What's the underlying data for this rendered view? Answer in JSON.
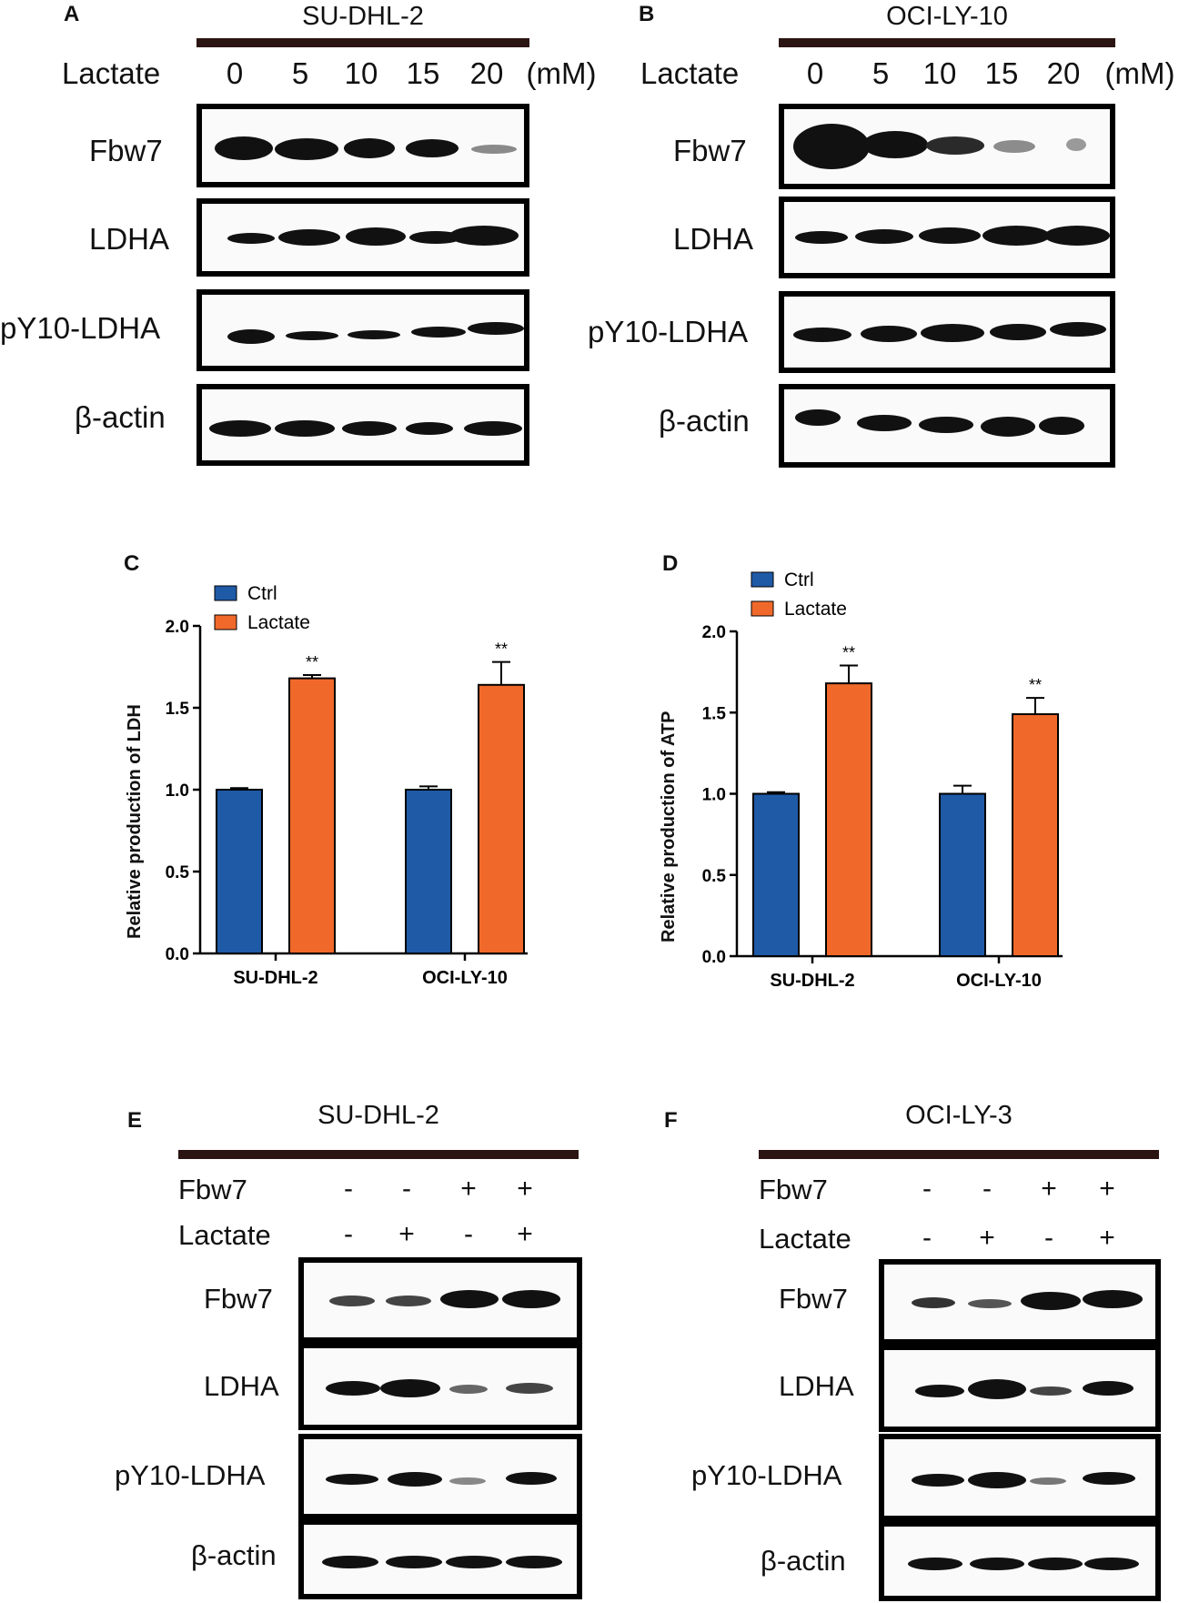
{
  "panels": {
    "A": {
      "letter": "A",
      "cell": "SU-DHL-2",
      "treat": "Lactate",
      "unit": "(mM)",
      "doses": [
        "0",
        "5",
        "10",
        "15",
        "20"
      ],
      "rows": [
        "Fbw7",
        "LDHA",
        "pY10-LDHA",
        "β-actin"
      ]
    },
    "B": {
      "letter": "B",
      "cell": "OCI-LY-10",
      "treat": "Lactate",
      "unit": "(mM)",
      "doses": [
        "0",
        "5",
        "10",
        "15",
        "20"
      ],
      "rows": [
        "Fbw7",
        "LDHA",
        "pY10-LDHA",
        "β-actin"
      ]
    },
    "E": {
      "letter": "E",
      "cell": "SU-DHL-2",
      "cond": [
        {
          "label": "Fbw7",
          "vals": [
            "-",
            "-",
            "+",
            "+"
          ]
        },
        {
          "label": "Lactate",
          "vals": [
            "-",
            "+",
            "-",
            "+"
          ]
        }
      ],
      "rows": [
        "Fbw7",
        "LDHA",
        "pY10-LDHA",
        "β-actin"
      ]
    },
    "F": {
      "letter": "F",
      "cell": "OCI-LY-3",
      "cond": [
        {
          "label": "Fbw7",
          "vals": [
            "-",
            "-",
            "+",
            "+"
          ]
        },
        {
          "label": "Lactate",
          "vals": [
            "-",
            "+",
            "-",
            "+"
          ]
        }
      ],
      "rows": [
        "Fbw7",
        "LDHA",
        "pY10-LDHA",
        "β-actin"
      ]
    }
  },
  "chart_data": [
    {
      "panel": "C",
      "type": "bar",
      "categories": [
        "SU-DHL-2",
        "OCI-LY-10"
      ],
      "series": [
        {
          "name": "Ctrl",
          "values": [
            1.0,
            1.0
          ],
          "errors": [
            0.01,
            0.02
          ],
          "color": "#1f5aa6"
        },
        {
          "name": "Lactate",
          "values": [
            1.68,
            1.64
          ],
          "errors": [
            0.02,
            0.14
          ],
          "color": "#f0692a"
        }
      ],
      "annotations": [
        "**",
        "**"
      ],
      "ylabel": "Relative production of LDH",
      "ylim": [
        0,
        2.0
      ],
      "yticks": [
        "0.0",
        "0.5",
        "1.0",
        "1.5",
        "2.0"
      ],
      "legend": "top-left"
    },
    {
      "panel": "D",
      "type": "bar",
      "categories": [
        "SU-DHL-2",
        "OCI-LY-10"
      ],
      "series": [
        {
          "name": "Ctrl",
          "values": [
            1.0,
            1.0
          ],
          "errors": [
            0.01,
            0.05
          ],
          "color": "#1f5aa6"
        },
        {
          "name": "Lactate",
          "values": [
            1.68,
            1.49
          ],
          "errors": [
            0.11,
            0.1
          ],
          "color": "#f0692a"
        }
      ],
      "annotations": [
        "**",
        "**"
      ],
      "ylabel": "Relative production of ATP",
      "ylim": [
        0,
        2.0
      ],
      "yticks": [
        "0.0",
        "0.5",
        "1.0",
        "1.5",
        "2.0"
      ],
      "legend": "top-left"
    }
  ],
  "chart_letters": {
    "C": "C",
    "D": "D"
  }
}
